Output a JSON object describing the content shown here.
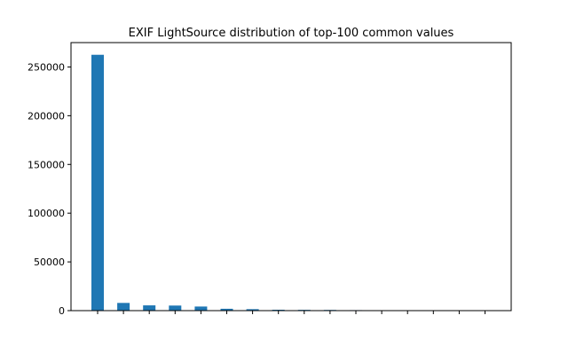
{
  "chart_data": {
    "type": "bar",
    "title": "EXIF LightSource distribution of top-100 common values",
    "xlabel": "",
    "ylabel": "",
    "categories": [
      "",
      "",
      "",
      "",
      "",
      "",
      "",
      "",
      "",
      "",
      "",
      "",
      "",
      "",
      "",
      ""
    ],
    "values": [
      262500,
      7900,
      5400,
      5200,
      4200,
      1900,
      1500,
      900,
      800,
      700,
      500,
      200,
      150,
      120,
      100,
      80
    ],
    "ylim": [
      0,
      275000
    ],
    "yticks": [
      0,
      50000,
      100000,
      150000,
      200000,
      250000
    ],
    "ytick_labels": [
      "0",
      "50000",
      "100000",
      "150000",
      "200000",
      "250000"
    ],
    "grid": false,
    "colors": {
      "bar": "#1f77b4",
      "axis": "#000000",
      "background": "#ffffff"
    }
  }
}
